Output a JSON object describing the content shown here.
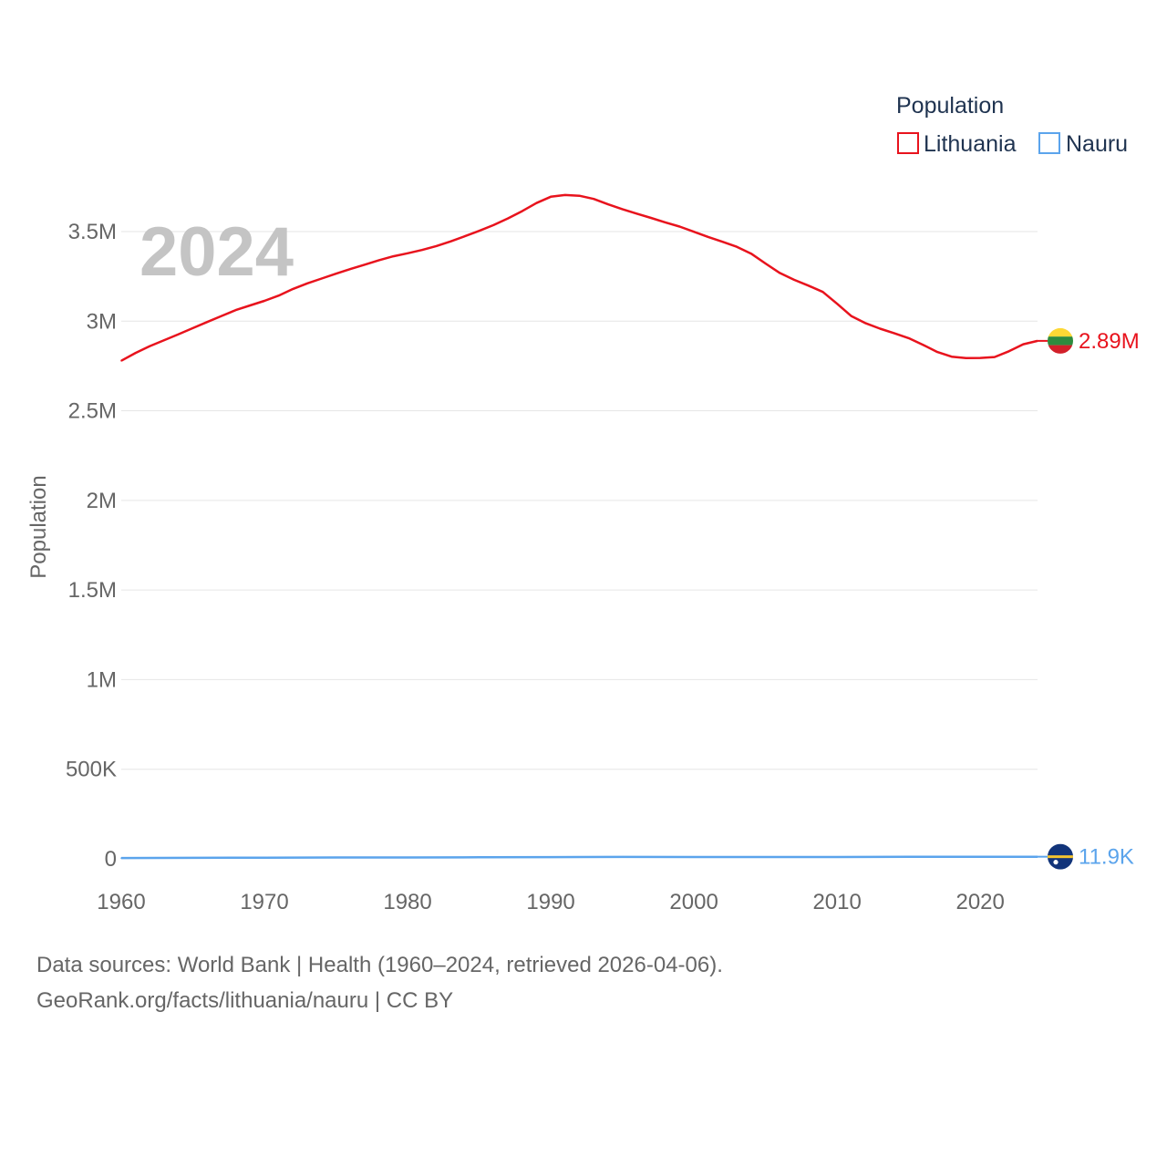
{
  "chart_data": {
    "type": "line",
    "title": "Population",
    "xlabel": "",
    "ylabel": "Population",
    "watermark_year": "2024",
    "xlim": [
      1960,
      2024
    ],
    "ylim": [
      0,
      3800000
    ],
    "x_ticks": [
      1960,
      1970,
      1980,
      1990,
      2000,
      2010,
      2020
    ],
    "y_ticks": [
      {
        "value": 0,
        "label": "0"
      },
      {
        "value": 500000,
        "label": "500K"
      },
      {
        "value": 1000000,
        "label": "1M"
      },
      {
        "value": 1500000,
        "label": "1.5M"
      },
      {
        "value": 2000000,
        "label": "2M"
      },
      {
        "value": 2500000,
        "label": "2.5M"
      },
      {
        "value": 3000000,
        "label": "3M"
      },
      {
        "value": 3500000,
        "label": "3.5M"
      }
    ],
    "grid": true,
    "legend": {
      "title": "Population",
      "position": "top-right"
    },
    "series": [
      {
        "name": "Lithuania",
        "color": "#e8131d",
        "end_label": "2.89M",
        "flag": "lithuania-flag",
        "x": [
          1960,
          1961,
          1962,
          1963,
          1964,
          1965,
          1966,
          1967,
          1968,
          1969,
          1970,
          1971,
          1972,
          1973,
          1974,
          1975,
          1976,
          1977,
          1978,
          1979,
          1980,
          1981,
          1982,
          1983,
          1984,
          1985,
          1986,
          1987,
          1988,
          1989,
          1990,
          1991,
          1992,
          1993,
          1994,
          1995,
          1996,
          1997,
          1998,
          1999,
          2000,
          2001,
          2002,
          2003,
          2004,
          2005,
          2006,
          2007,
          2008,
          2009,
          2010,
          2011,
          2012,
          2013,
          2014,
          2015,
          2016,
          2017,
          2018,
          2019,
          2020,
          2021,
          2022,
          2023,
          2024
        ],
        "values": [
          2779000,
          2823000,
          2861000,
          2894000,
          2927000,
          2961000,
          2995000,
          3029000,
          3062000,
          3088000,
          3113000,
          3143000,
          3180000,
          3211000,
          3238000,
          3265000,
          3291000,
          3315000,
          3340000,
          3362000,
          3379000,
          3397000,
          3419000,
          3445000,
          3474000,
          3504000,
          3536000,
          3573000,
          3614000,
          3659000,
          3694000,
          3704000,
          3700000,
          3682000,
          3652000,
          3625000,
          3600000,
          3576000,
          3551000,
          3528000,
          3499000,
          3470000,
          3443000,
          3415000,
          3377000,
          3322000,
          3269000,
          3231000,
          3198000,
          3163000,
          3097000,
          3028000,
          2988000,
          2958000,
          2932000,
          2905000,
          2868000,
          2828000,
          2802000,
          2794000,
          2795000,
          2800000,
          2832000,
          2871000,
          2890000
        ]
      },
      {
        "name": "Nauru",
        "color": "#5ba4ec",
        "end_label": "11.9K",
        "flag": "nauru-flag",
        "x": [
          1960,
          1965,
          1970,
          1975,
          1980,
          1985,
          1990,
          1995,
          2000,
          2005,
          2010,
          2015,
          2020,
          2024
        ],
        "values": [
          4400,
          5400,
          6700,
          7400,
          7600,
          8500,
          9600,
          10600,
          10400,
          10400,
          10200,
          11200,
          11700,
          11900
        ]
      }
    ]
  },
  "footer": {
    "line1": "Data sources: World Bank | Health (1960–2024, retrieved 2026-04-06).",
    "line2": "GeoRank.org/facts/lithuania/nauru | CC BY"
  }
}
